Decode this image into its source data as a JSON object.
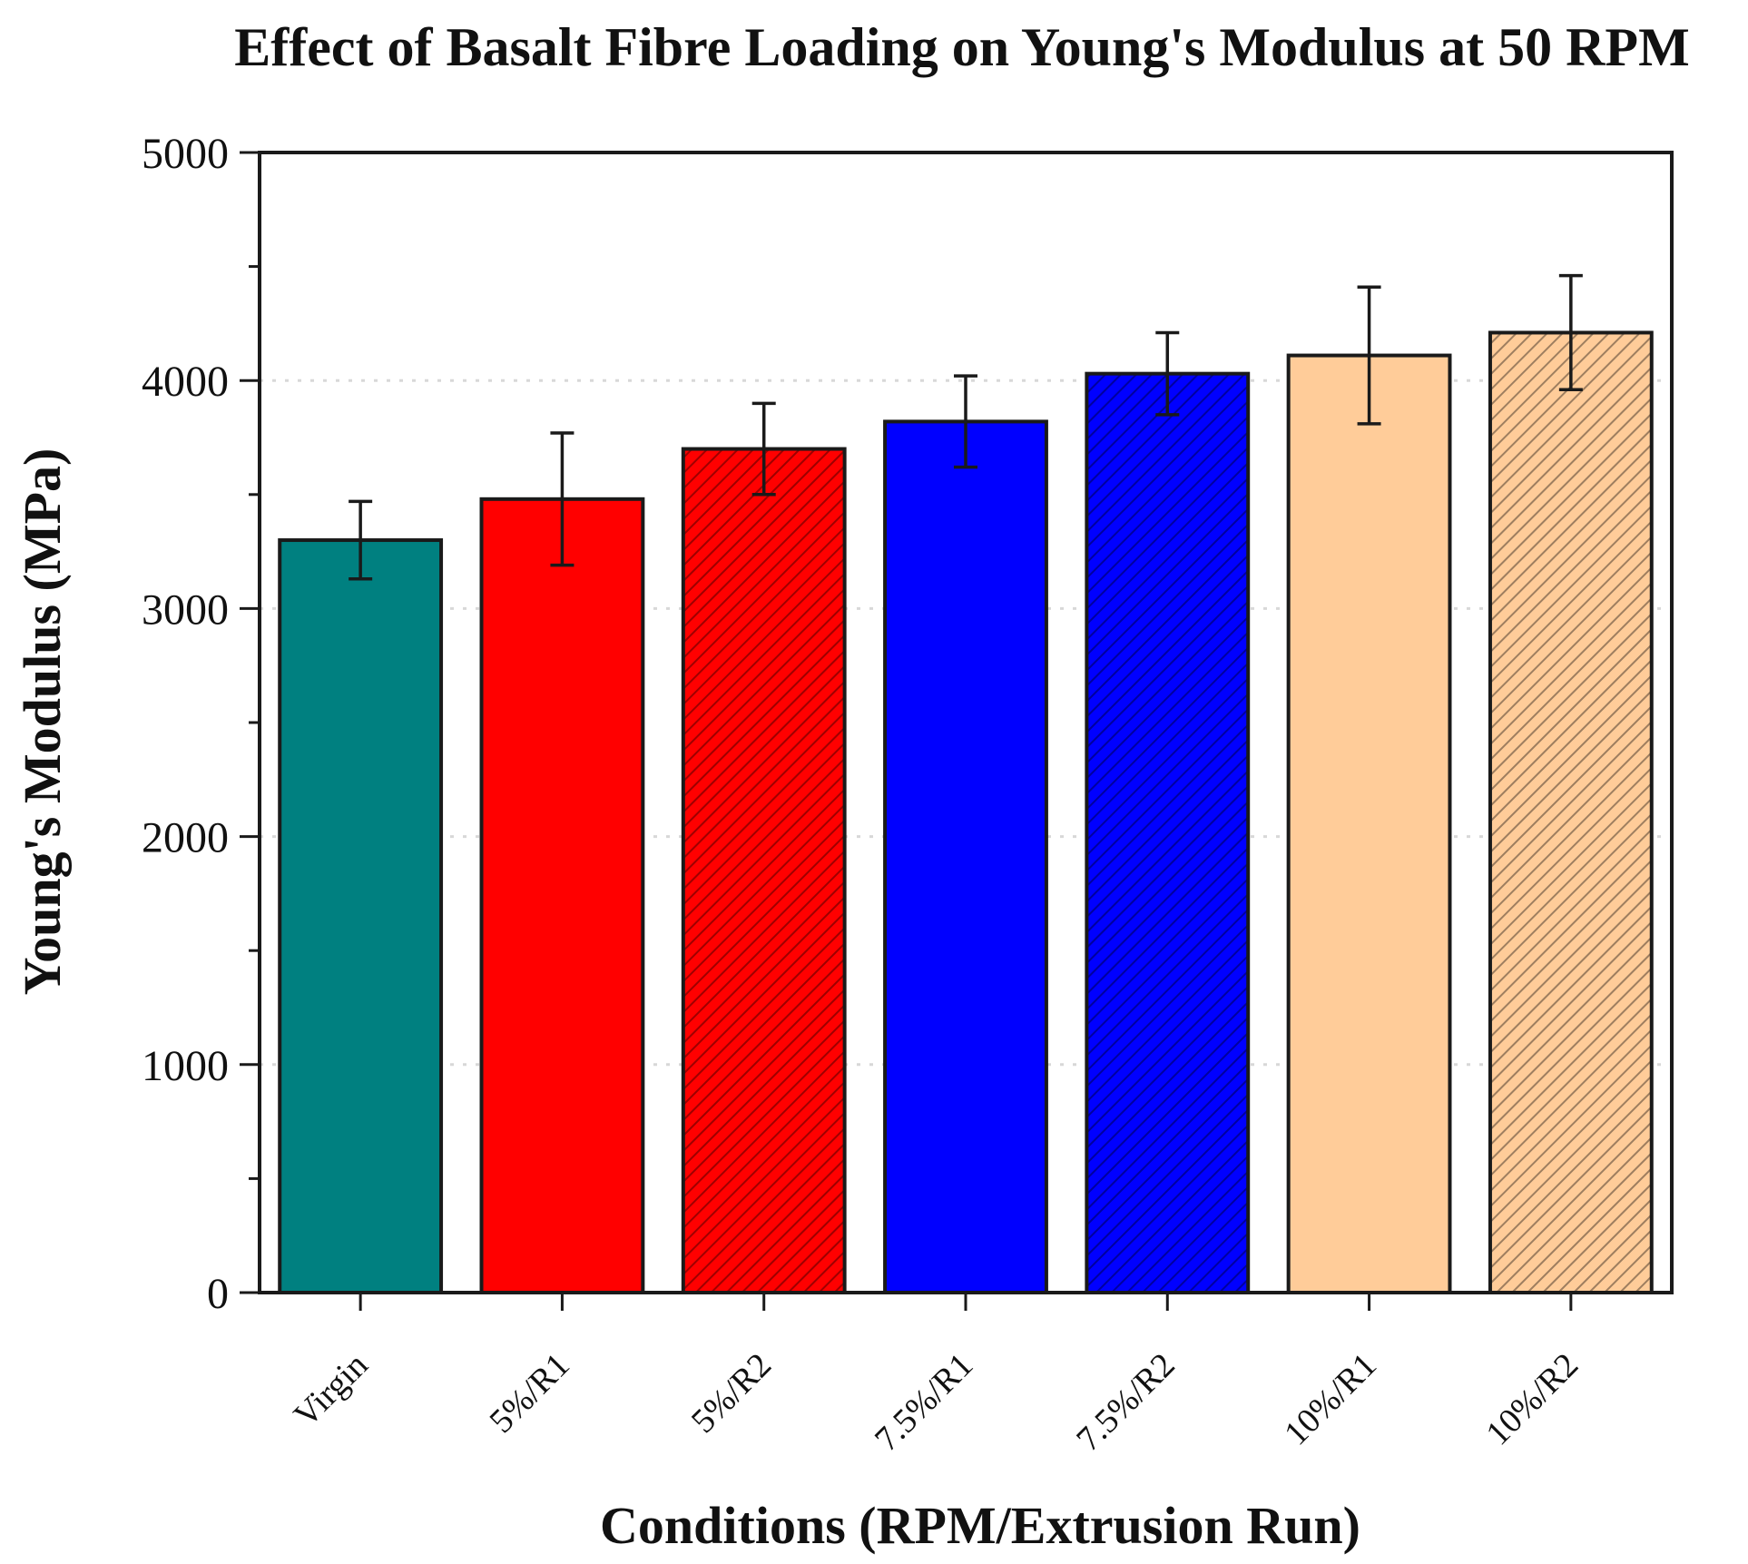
{
  "chart_data": {
    "type": "bar",
    "title": "Effect of Basalt Fibre Loading on Young's Modulus at 50 RPM",
    "xlabel": "Conditions (RPM/Extrusion Run)",
    "ylabel": "Young's Modulus (MPa)",
    "ylim": [
      0,
      5000
    ],
    "yticks": [
      0,
      1000,
      2000,
      3000,
      4000,
      5000
    ],
    "grid": "horizontal dotted",
    "categories": [
      "Virgin",
      "5%/R1",
      "5%/R2",
      "7.5%/R1",
      "7.5%/R2",
      "10%/R1",
      "10%/R2"
    ],
    "values": [
      3300,
      3480,
      3700,
      3820,
      4030,
      4110,
      4210
    ],
    "error": [
      170,
      290,
      200,
      200,
      180,
      300,
      250
    ],
    "colors": [
      "#008080",
      "#ff0000",
      "#ff0000",
      "#0000ff",
      "#0000ff",
      "#ffcc99",
      "#ffcc99"
    ],
    "hatched": [
      false,
      false,
      true,
      false,
      true,
      false,
      true
    ]
  }
}
